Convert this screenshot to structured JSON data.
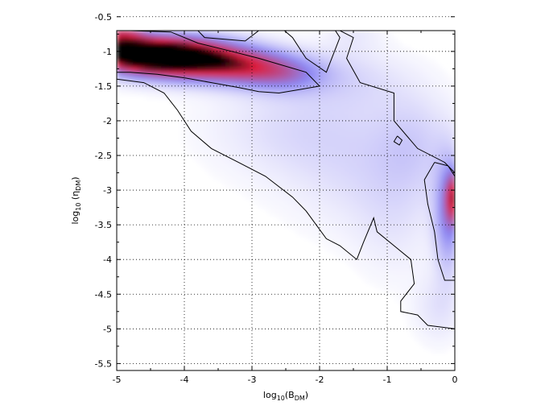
{
  "chart_data": {
    "type": "heatmap",
    "title": "",
    "xlabel": {
      "pre": "log",
      "sub1": "10",
      "mid": "(B",
      "sub2": "DM",
      "post": ")"
    },
    "ylabel": {
      "pre": "log",
      "sub1": "10",
      "mid": " (η",
      "sub2": "DM",
      "post": ")"
    },
    "xlim": [
      -5,
      0
    ],
    "ylim": [
      -5.6,
      -0.7
    ],
    "x_ticks": [
      -5,
      -4,
      -3,
      -2,
      -1,
      0
    ],
    "x_tick_labels": [
      "-5",
      "-4",
      "-3",
      "-2",
      "-1",
      "0"
    ],
    "y_ticks": [
      -0.5,
      -1,
      -1.5,
      -2,
      -2.5,
      -3,
      -3.5,
      -4,
      -4.5,
      -5,
      -5.5
    ],
    "y_tick_labels": [
      "-0.5",
      "-1",
      "-1.5",
      "-2",
      "-2.5",
      "-3",
      "-3.5",
      "-4",
      "-4.5",
      "-5",
      "-5.5"
    ],
    "grid": true,
    "colormap": [
      "#ffffff",
      "#8c86f2",
      "#dd1d3b",
      "#000000"
    ],
    "density_blobs": [
      {
        "x": -4.6,
        "y": -1.05,
        "sx": 0.55,
        "sy": 0.18,
        "level": 1.0
      },
      {
        "x": -3.9,
        "y": -1.1,
        "sx": 0.6,
        "sy": 0.2,
        "level": 0.75
      },
      {
        "x": -3.1,
        "y": -1.22,
        "sx": 0.55,
        "sy": 0.18,
        "level": 0.45
      },
      {
        "x": -2.5,
        "y": -1.35,
        "sx": 0.45,
        "sy": 0.18,
        "level": 0.25
      },
      {
        "x": -4.95,
        "y": -0.75,
        "sx": 0.25,
        "sy": 0.2,
        "level": 0.45
      },
      {
        "x": -2.3,
        "y": -2.1,
        "sx": 0.9,
        "sy": 0.5,
        "level": 0.1
      },
      {
        "x": -1.5,
        "y": -1.4,
        "sx": 0.6,
        "sy": 0.3,
        "level": 0.08
      },
      {
        "x": -1.3,
        "y": -2.8,
        "sx": 0.8,
        "sy": 0.6,
        "level": 0.08
      },
      {
        "x": -0.6,
        "y": -2.3,
        "sx": 0.4,
        "sy": 0.5,
        "level": 0.1
      },
      {
        "x": -0.9,
        "y": -3.5,
        "sx": 0.4,
        "sy": 0.6,
        "level": 0.05
      },
      {
        "x": -0.1,
        "y": -3.35,
        "sx": 0.14,
        "sy": 0.55,
        "level": 0.35
      },
      {
        "x": -0.02,
        "y": -3.1,
        "sx": 0.08,
        "sy": 0.25,
        "level": 0.5
      },
      {
        "x": -0.25,
        "y": -4.7,
        "sx": 0.25,
        "sy": 0.35,
        "level": 0.08
      },
      {
        "x": -1.5,
        "y": -0.7,
        "sx": 0.3,
        "sy": 0.25,
        "level": 0.06
      }
    ],
    "contours": [
      [
        [
          -5,
          -0.7
        ],
        [
          -4.8,
          -0.7
        ],
        [
          -4.2,
          -0.72
        ],
        [
          -3.8,
          -0.88
        ],
        [
          -3.3,
          -1.0
        ],
        [
          -2.9,
          -1.1
        ],
        [
          -2.2,
          -1.3
        ],
        [
          -2.0,
          -1.5
        ],
        [
          -2.3,
          -1.55
        ],
        [
          -2.6,
          -1.6
        ],
        [
          -2.9,
          -1.58
        ],
        [
          -3.2,
          -1.52
        ],
        [
          -3.6,
          -1.45
        ],
        [
          -4.0,
          -1.38
        ],
        [
          -4.4,
          -1.33
        ],
        [
          -4.8,
          -1.3
        ],
        [
          -5,
          -1.3
        ]
      ],
      [
        [
          -5,
          -0.45
        ],
        [
          -4.6,
          -0.48
        ],
        [
          -4.0,
          -0.5
        ],
        [
          -3.7,
          -0.8
        ],
        [
          -3.1,
          -0.85
        ],
        [
          -2.7,
          -0.55
        ],
        [
          -2.4,
          -0.8
        ],
        [
          -2.2,
          -1.1
        ],
        [
          -1.9,
          -1.3
        ],
        [
          -1.7,
          -0.8
        ],
        [
          -1.8,
          -0.65
        ],
        [
          -1.5,
          -0.8
        ],
        [
          -1.6,
          -1.1
        ],
        [
          -1.4,
          -1.45
        ],
        [
          -0.9,
          -1.6
        ],
        [
          -0.9,
          -2.0
        ],
        [
          -0.55,
          -2.4
        ],
        [
          -0.15,
          -2.6
        ],
        [
          0,
          -2.75
        ],
        [
          0,
          -5.0
        ],
        [
          -0.4,
          -4.95
        ],
        [
          -0.55,
          -4.8
        ],
        [
          -0.8,
          -4.75
        ],
        [
          -0.8,
          -4.6
        ],
        [
          -0.6,
          -4.35
        ],
        [
          -0.65,
          -4.0
        ],
        [
          -0.9,
          -3.8
        ],
        [
          -1.15,
          -3.6
        ],
        [
          -1.2,
          -3.4
        ],
        [
          -1.35,
          -3.75
        ],
        [
          -1.45,
          -4.0
        ],
        [
          -1.7,
          -3.8
        ],
        [
          -1.9,
          -3.7
        ],
        [
          -2.2,
          -3.3
        ],
        [
          -2.4,
          -3.1
        ],
        [
          -2.8,
          -2.8
        ],
        [
          -3.2,
          -2.6
        ],
        [
          -3.6,
          -2.4
        ],
        [
          -3.9,
          -2.15
        ],
        [
          -4.1,
          -1.85
        ],
        [
          -4.3,
          -1.6
        ],
        [
          -4.6,
          -1.45
        ],
        [
          -5,
          -1.4
        ]
      ],
      [
        [
          -0.3,
          -2.6
        ],
        [
          -0.1,
          -2.65
        ],
        [
          0,
          -2.8
        ],
        [
          0,
          -4.3
        ],
        [
          -0.15,
          -4.3
        ],
        [
          -0.25,
          -4.0
        ],
        [
          -0.3,
          -3.6
        ],
        [
          -0.4,
          -3.2
        ],
        [
          -0.45,
          -2.85
        ],
        [
          -0.3,
          -2.6
        ]
      ],
      [
        [
          -0.85,
          -2.22
        ],
        [
          -0.78,
          -2.28
        ],
        [
          -0.82,
          -2.35
        ],
        [
          -0.9,
          -2.3
        ],
        [
          -0.85,
          -2.22
        ]
      ]
    ]
  }
}
